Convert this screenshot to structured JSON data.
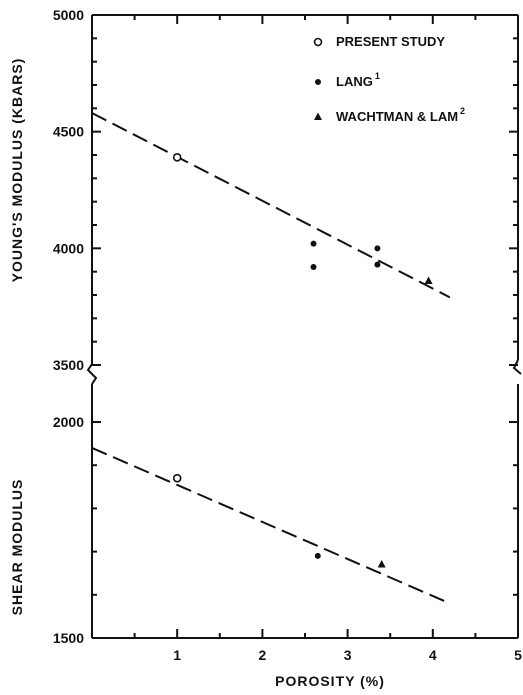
{
  "chart_data": [
    {
      "type": "scatter",
      "panel": "top",
      "ylabel": "YOUNG'S MODULUS    (KBARS)",
      "xlim": [
        0,
        5
      ],
      "ylim": [
        3500,
        5000
      ],
      "y_ticks": [
        "3500",
        "4000",
        "4500",
        "5000"
      ],
      "series": [
        {
          "name": "PRESENT STUDY",
          "marker": "open-circle",
          "points": [
            [
              1.0,
              4390
            ]
          ]
        },
        {
          "name": "LANG",
          "name_superscript": "1",
          "marker": "filled-circle",
          "points": [
            [
              2.6,
              4020
            ],
            [
              2.6,
              3920
            ],
            [
              3.35,
              4000
            ],
            [
              3.35,
              3930
            ]
          ]
        },
        {
          "name": "WACHTMAN & LAM",
          "name_superscript": "2",
          "marker": "filled-triangle",
          "points": [
            [
              3.95,
              3860
            ]
          ]
        }
      ],
      "fit_line": {
        "style": "dashed",
        "points": [
          [
            0.0,
            4580
          ],
          [
            4.2,
            3790
          ]
        ]
      }
    },
    {
      "type": "scatter",
      "panel": "bottom",
      "ylabel": "SHEAR   MODULUS",
      "xlabel": "POROSITY   (%)",
      "xlim": [
        0,
        5
      ],
      "ylim": [
        1500,
        2000
      ],
      "x_ticks": [
        "1",
        "2",
        "3",
        "4",
        "5"
      ],
      "y_ticks": [
        "1500",
        "2000"
      ],
      "series": [
        {
          "name": "PRESENT STUDY",
          "marker": "open-circle",
          "points": [
            [
              1.0,
              1870
            ]
          ]
        },
        {
          "name": "LANG",
          "marker": "filled-circle",
          "points": [
            [
              2.65,
              1690
            ]
          ]
        },
        {
          "name": "WACHTMAN & LAM",
          "marker": "filled-triangle",
          "points": [
            [
              3.4,
              1670
            ]
          ]
        }
      ],
      "fit_line": {
        "style": "dashed",
        "points": [
          [
            0.0,
            1940
          ],
          [
            4.2,
            1580
          ]
        ]
      }
    }
  ],
  "legend": {
    "position": "top-right",
    "entries": [
      {
        "label": "PRESENT STUDY",
        "sup": "",
        "marker": "open-circle"
      },
      {
        "label": "LANG",
        "sup": "1",
        "marker": "filled-circle"
      },
      {
        "label": "WACHTMAN & LAM",
        "sup": "2",
        "marker": "filled-triangle"
      }
    ]
  }
}
